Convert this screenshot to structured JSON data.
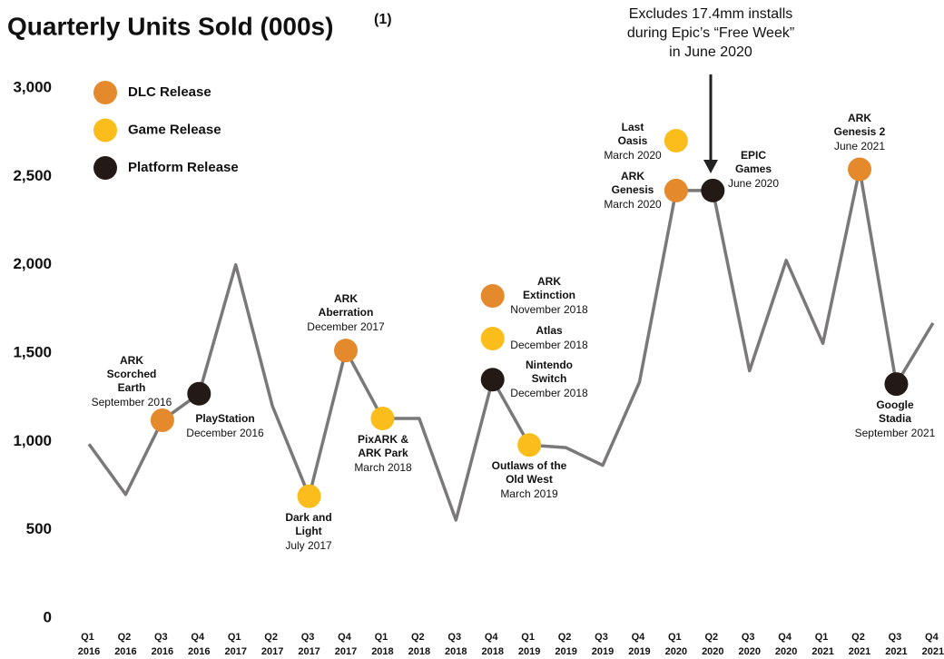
{
  "chart_data": {
    "type": "line",
    "title": "Quarterly Units Sold (000s)",
    "title_note": "(1)",
    "categories": [
      "Q1 2016",
      "Q2 2016",
      "Q3 2016",
      "Q4 2016",
      "Q1 2017",
      "Q2 2017",
      "Q3 2017",
      "Q4 2017",
      "Q1 2018",
      "Q2 2018",
      "Q3 2018",
      "Q4 2018",
      "Q1 2019",
      "Q2 2019",
      "Q3 2019",
      "Q4 2019",
      "Q1 2020",
      "Q2 2020",
      "Q3 2020",
      "Q4 2020",
      "Q1 2021",
      "Q2 2021",
      "Q3 2021",
      "Q4 2021"
    ],
    "values": [
      985,
      700,
      1120,
      1270,
      2000,
      1200,
      690,
      1515,
      1130,
      1130,
      555,
      1350,
      980,
      965,
      865,
      1335,
      2420,
      2420,
      1400,
      2025,
      1555,
      2540,
      1325,
      1670
    ],
    "color": "#7a7878",
    "ylim": [
      0,
      3000
    ],
    "yticks": [
      0,
      500,
      {
        "value": 1000,
        "label": "1,000"
      },
      {
        "value": 1500,
        "label": "1,500"
      },
      {
        "value": 2000,
        "label": "2,000"
      },
      {
        "value": 2500,
        "label": "2,500"
      },
      {
        "value": 3000,
        "label": "3,000"
      }
    ],
    "grid": false,
    "legend": [
      {
        "name": "DLC Release",
        "color": "#e5892d"
      },
      {
        "name": "Game Release",
        "color": "#fbbd1c"
      },
      {
        "name": "Platform Release",
        "color": "#231a15"
      }
    ],
    "annotations": [
      {
        "label": [
          "ARK",
          "Scorched",
          "Earth"
        ],
        "date": "September 2016",
        "kind": "DLC Release"
      },
      {
        "label": [
          "PlayStation"
        ],
        "date": "December 2016",
        "kind": "Platform Release"
      },
      {
        "label": [
          "Dark and",
          "Light"
        ],
        "date": "July 2017",
        "kind": "Game Release"
      },
      {
        "label": [
          "ARK",
          "Aberration"
        ],
        "date": "December 2017",
        "kind": "DLC Release"
      },
      {
        "label": [
          "PixARK &",
          "ARK Park"
        ],
        "date": "March 2018",
        "kind": "Game Release"
      },
      {
        "label": [
          "ARK",
          "Extinction"
        ],
        "date": "November 2018",
        "kind": "DLC Release"
      },
      {
        "label": [
          "Atlas"
        ],
        "date": "December 2018",
        "kind": "Game Release"
      },
      {
        "label": [
          "Nintendo",
          "Switch"
        ],
        "date": "December 2018",
        "kind": "Platform Release"
      },
      {
        "label": [
          "Outlaws of the",
          "Old West"
        ],
        "date": "March 2019",
        "kind": "Game Release"
      },
      {
        "label": [
          "Last",
          "Oasis"
        ],
        "date": "March 2020",
        "kind": "Game Release"
      },
      {
        "label": [
          "ARK",
          "Genesis"
        ],
        "date": "March 2020",
        "kind": "DLC Release"
      },
      {
        "label": [
          "EPIC",
          "Games"
        ],
        "date": "June 2020",
        "kind": "Platform Release"
      },
      {
        "label": [
          "ARK",
          "Genesis 2"
        ],
        "date": "June 2021",
        "kind": "DLC Release"
      },
      {
        "label": [
          "Google",
          "Stadia"
        ],
        "date": "September 2021",
        "kind": "Platform Release"
      }
    ],
    "callout": [
      "Excludes 17.4mm installs",
      "during Epic’s “Free Week”",
      "in June 2020"
    ]
  }
}
